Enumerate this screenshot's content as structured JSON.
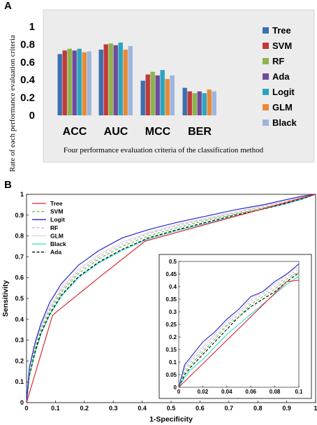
{
  "figure": {
    "panel_a_label": "A",
    "panel_b_label": "B"
  },
  "chart_data": [
    {
      "type": "bar",
      "title": "",
      "xlabel": "Four performance evaluation criteria of the classification method",
      "ylabel": "Rate of each performance evaluation criteria",
      "ylim": [
        0,
        1
      ],
      "yticks": [
        "1",
        "0.8",
        "0.6",
        "0.4",
        "0.2",
        "0"
      ],
      "categories": [
        "ACC",
        "AUC",
        "MCC",
        "BER"
      ],
      "legend_position": "right",
      "grid": false,
      "series": [
        {
          "name": "Tree",
          "color": "#3c6fb0",
          "values": [
            0.69,
            0.74,
            0.39,
            0.31
          ]
        },
        {
          "name": "SVM",
          "color": "#c0393b",
          "values": [
            0.73,
            0.8,
            0.46,
            0.27
          ]
        },
        {
          "name": "RF",
          "color": "#8fb24a",
          "values": [
            0.75,
            0.81,
            0.49,
            0.25
          ]
        },
        {
          "name": "Ada",
          "color": "#6e4b9c",
          "values": [
            0.73,
            0.79,
            0.45,
            0.27
          ]
        },
        {
          "name": "Logit",
          "color": "#2aa5c0",
          "values": [
            0.75,
            0.82,
            0.51,
            0.25
          ]
        },
        {
          "name": "GLM",
          "color": "#e88a35",
          "values": [
            0.71,
            0.74,
            0.41,
            0.29
          ]
        },
        {
          "name": "Black",
          "color": "#9db5dd",
          "values": [
            0.72,
            0.78,
            0.45,
            0.27
          ]
        }
      ]
    },
    {
      "type": "line",
      "title": "",
      "xlabel": "1-Specificity",
      "ylabel": "Sensitivity",
      "xlim": [
        0,
        1
      ],
      "ylim": [
        0,
        1
      ],
      "xticks": [
        "0",
        "0.1",
        "0.2",
        "0.3",
        "0.4",
        "0.5",
        "0.6",
        "0.7",
        "0.8",
        "0.9",
        "1"
      ],
      "yticks": [
        "0",
        "0.1",
        "0.2",
        "0.3",
        "0.4",
        "0.5",
        "0.6",
        "0.7",
        "0.8",
        "0.9",
        "1"
      ],
      "legend_position": "top-left",
      "grid": false,
      "series": [
        {
          "name": "Tree",
          "color": "#e0262b",
          "dash": "solid",
          "x": [
            0,
            0.09,
            0.25,
            0.41,
            1
          ],
          "y": [
            0,
            0.42,
            0.6,
            0.775,
            1
          ]
        },
        {
          "name": "SVM",
          "color": "#4fcf3b",
          "dash": "dashed",
          "x": [
            0,
            0.01,
            0.03,
            0.05,
            0.08,
            0.12,
            0.18,
            0.25,
            0.33,
            0.42,
            0.52,
            0.62,
            0.72,
            0.82,
            0.9,
            0.95,
            1
          ],
          "y": [
            0,
            0.14,
            0.26,
            0.35,
            0.44,
            0.53,
            0.62,
            0.69,
            0.75,
            0.8,
            0.84,
            0.875,
            0.905,
            0.935,
            0.96,
            0.98,
            1
          ]
        },
        {
          "name": "Logit",
          "color": "#2026d0",
          "dash": "solid",
          "x": [
            0,
            0.01,
            0.03,
            0.05,
            0.08,
            0.12,
            0.18,
            0.25,
            0.33,
            0.42,
            0.52,
            0.62,
            0.72,
            0.82,
            0.9,
            0.95,
            1
          ],
          "y": [
            0,
            0.17,
            0.29,
            0.38,
            0.48,
            0.57,
            0.66,
            0.73,
            0.79,
            0.83,
            0.865,
            0.895,
            0.925,
            0.95,
            0.975,
            0.99,
            1
          ]
        },
        {
          "name": "RF",
          "color": "#e8a8e0",
          "dash": "dashed",
          "x": [
            0,
            0.01,
            0.03,
            0.05,
            0.08,
            0.12,
            0.18,
            0.25,
            0.33,
            0.42,
            0.52,
            0.62,
            0.72,
            0.82,
            0.9,
            0.95,
            1
          ],
          "y": [
            0,
            0.15,
            0.27,
            0.36,
            0.45,
            0.54,
            0.63,
            0.7,
            0.76,
            0.81,
            0.85,
            0.88,
            0.91,
            0.94,
            0.965,
            0.985,
            1
          ]
        },
        {
          "name": "GLM",
          "color": "#d6d6d6",
          "dash": "solid",
          "x": [
            0,
            0.01,
            0.03,
            0.05,
            0.08,
            0.12,
            0.18,
            0.25,
            0.33,
            0.42,
            0.52,
            0.62,
            0.72,
            0.82,
            0.9,
            0.95,
            1
          ],
          "y": [
            0,
            0.16,
            0.28,
            0.37,
            0.46,
            0.55,
            0.64,
            0.71,
            0.77,
            0.815,
            0.855,
            0.885,
            0.915,
            0.945,
            0.97,
            0.985,
            1
          ]
        },
        {
          "name": "Black",
          "color": "#33dcd2",
          "dash": "solid",
          "x": [
            0,
            0.01,
            0.03,
            0.05,
            0.08,
            0.12,
            0.18,
            0.25,
            0.33,
            0.42,
            0.52,
            0.62,
            0.72,
            0.82,
            0.9,
            0.95,
            1
          ],
          "y": [
            0,
            0.13,
            0.24,
            0.33,
            0.42,
            0.51,
            0.6,
            0.67,
            0.73,
            0.785,
            0.825,
            0.86,
            0.895,
            0.93,
            0.955,
            0.975,
            1
          ]
        },
        {
          "name": "Ada",
          "color": "#000000",
          "dash": "dashed",
          "x": [
            0,
            0.01,
            0.03,
            0.05,
            0.08,
            0.12,
            0.18,
            0.25,
            0.33,
            0.42,
            0.52,
            0.62,
            0.72,
            0.82,
            0.9,
            0.95,
            1
          ],
          "y": [
            0,
            0.13,
            0.245,
            0.335,
            0.425,
            0.515,
            0.605,
            0.675,
            0.735,
            0.79,
            0.83,
            0.865,
            0.9,
            0.93,
            0.958,
            0.978,
            1
          ]
        }
      ],
      "inset": {
        "xlim": [
          0,
          0.1
        ],
        "ylim": [
          0,
          0.5
        ],
        "xticks": [
          "0",
          "0.02",
          "0.04",
          "0.06",
          "0.08",
          "0.1"
        ],
        "yticks": [
          "0",
          "0.05",
          "0.1",
          "0.15",
          "0.2",
          "0.25",
          "0.3",
          "0.35",
          "0.4",
          "0.45",
          "0.5"
        ],
        "series": [
          {
            "name": "Tree",
            "x": [
              0,
              0.09,
              0.1
            ],
            "y": [
              0,
              0.42,
              0.425
            ]
          },
          {
            "name": "SVM",
            "x": [
              0,
              0.005,
              0.01,
              0.02,
              0.03,
              0.04,
              0.05,
              0.06,
              0.07,
              0.08,
              0.09,
              0.1
            ],
            "y": [
              0,
              0.06,
              0.09,
              0.14,
              0.19,
              0.245,
              0.28,
              0.33,
              0.36,
              0.39,
              0.43,
              0.46
            ]
          },
          {
            "name": "Logit",
            "x": [
              0,
              0.005,
              0.01,
              0.02,
              0.03,
              0.04,
              0.05,
              0.06,
              0.07,
              0.08,
              0.09,
              0.1
            ],
            "y": [
              0,
              0.09,
              0.12,
              0.18,
              0.22,
              0.27,
              0.31,
              0.36,
              0.38,
              0.42,
              0.45,
              0.49
            ]
          },
          {
            "name": "RF",
            "x": [
              0,
              0.005,
              0.01,
              0.02,
              0.03,
              0.04,
              0.05,
              0.06,
              0.07,
              0.08,
              0.09,
              0.1
            ],
            "y": [
              0,
              0.07,
              0.1,
              0.15,
              0.2,
              0.25,
              0.29,
              0.34,
              0.37,
              0.4,
              0.44,
              0.47
            ]
          },
          {
            "name": "GLM",
            "x": [
              0,
              0.005,
              0.01,
              0.02,
              0.03,
              0.04,
              0.05,
              0.06,
              0.07,
              0.08,
              0.09,
              0.1
            ],
            "y": [
              0,
              0.08,
              0.11,
              0.16,
              0.21,
              0.26,
              0.3,
              0.35,
              0.38,
              0.41,
              0.45,
              0.48
            ]
          },
          {
            "name": "Black",
            "x": [
              0,
              0.005,
              0.01,
              0.02,
              0.03,
              0.04,
              0.05,
              0.06,
              0.07,
              0.08,
              0.09,
              0.1
            ],
            "y": [
              0,
              0.04,
              0.07,
              0.11,
              0.16,
              0.21,
              0.25,
              0.29,
              0.33,
              0.37,
              0.41,
              0.44
            ]
          },
          {
            "name": "Ada",
            "x": [
              0,
              0.005,
              0.01,
              0.02,
              0.03,
              0.04,
              0.05,
              0.06,
              0.07,
              0.08,
              0.09,
              0.1
            ],
            "y": [
              0,
              0.05,
              0.08,
              0.13,
              0.18,
              0.23,
              0.28,
              0.32,
              0.35,
              0.38,
              0.42,
              0.455
            ]
          }
        ]
      }
    }
  ]
}
